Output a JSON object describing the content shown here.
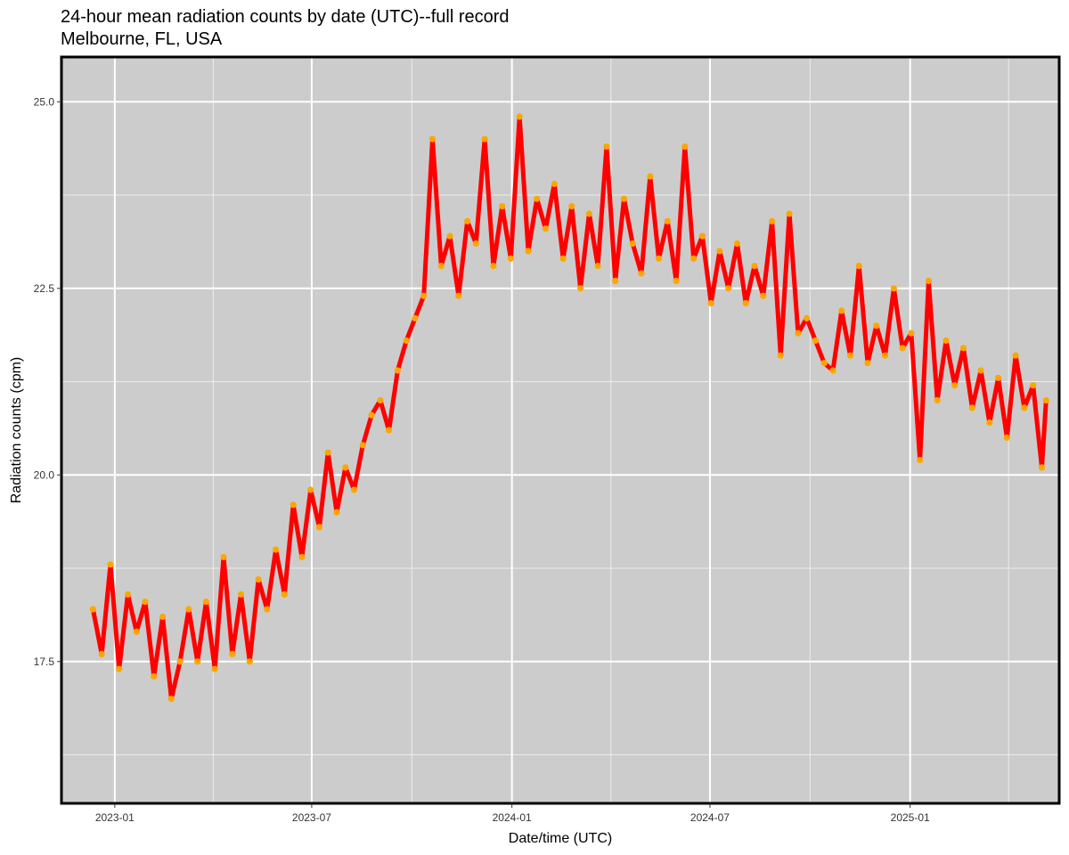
{
  "chart_data": {
    "type": "line",
    "title": "24-hour mean radiation counts by date (UTC)--full record",
    "subtitle": "Melbourne, FL, USA",
    "xlabel": "Date/time (UTC)",
    "ylabel": "Radiation counts (cpm)",
    "x_ticks": [
      "2023-01",
      "2023-07",
      "2024-01",
      "2024-07",
      "2025-01"
    ],
    "y_ticks": [
      "17.5",
      "20.0",
      "22.5",
      "25.0"
    ],
    "xlim": [
      "2022-11-13",
      "2025-05-18"
    ],
    "ylim": [
      15.6,
      25.6
    ],
    "grid": true,
    "line_color": "#ff0000",
    "point_color": "#ffa500",
    "panel_background": "#cccccc",
    "series": [
      {
        "x": [
          "2022-12-12",
          "2022-12-20",
          "2022-12-28",
          "2023-01-05",
          "2023-01-13",
          "2023-01-21",
          "2023-01-29",
          "2023-02-06",
          "2023-02-14",
          "2023-02-22",
          "2023-03-02",
          "2023-03-10",
          "2023-03-18",
          "2023-03-26",
          "2023-04-03",
          "2023-04-11",
          "2023-04-19",
          "2023-04-27",
          "2023-05-05",
          "2023-05-13",
          "2023-05-21",
          "2023-05-29",
          "2023-06-06",
          "2023-06-14",
          "2023-06-22",
          "2023-06-30",
          "2023-07-08",
          "2023-07-16",
          "2023-07-24",
          "2023-08-01",
          "2023-08-09",
          "2023-08-17",
          "2023-08-25",
          "2023-09-02",
          "2023-09-10",
          "2023-09-18",
          "2023-09-26",
          "2023-10-04",
          "2023-10-12",
          "2023-10-20",
          "2023-10-28",
          "2023-11-05",
          "2023-11-13",
          "2023-11-21",
          "2023-11-29",
          "2023-12-07",
          "2023-12-15",
          "2023-12-23",
          "2023-12-31",
          "2024-01-08",
          "2024-01-16",
          "2024-01-24",
          "2024-02-01",
          "2024-02-09",
          "2024-02-17",
          "2024-02-25",
          "2024-03-04",
          "2024-03-12",
          "2024-03-20",
          "2024-03-28",
          "2024-04-05",
          "2024-04-13",
          "2024-04-21",
          "2024-04-29",
          "2024-05-07",
          "2024-05-15",
          "2024-05-23",
          "2024-05-31",
          "2024-06-08",
          "2024-06-16",
          "2024-06-24",
          "2024-07-02",
          "2024-07-10",
          "2024-07-18",
          "2024-07-26",
          "2024-08-03",
          "2024-08-11",
          "2024-08-19",
          "2024-08-27",
          "2024-09-04",
          "2024-09-12",
          "2024-09-20",
          "2024-09-28",
          "2024-10-06",
          "2024-10-14",
          "2024-10-22",
          "2024-10-30",
          "2024-11-07",
          "2024-11-15",
          "2024-11-23",
          "2024-12-01",
          "2024-12-09",
          "2024-12-17",
          "2024-12-25",
          "2025-01-02",
          "2025-01-10",
          "2025-01-18",
          "2025-01-26",
          "2025-02-03",
          "2025-02-11",
          "2025-02-19",
          "2025-02-27",
          "2025-03-07",
          "2025-03-15",
          "2025-03-23",
          "2025-03-31",
          "2025-04-08",
          "2025-04-16",
          "2025-04-24",
          "2025-05-02",
          "2025-05-06"
        ],
        "values": [
          18.2,
          17.6,
          18.8,
          17.4,
          18.4,
          17.9,
          18.3,
          17.3,
          18.1,
          17.0,
          17.5,
          18.2,
          17.5,
          18.3,
          17.4,
          18.9,
          17.6,
          18.4,
          17.5,
          18.6,
          18.2,
          19.0,
          18.4,
          19.6,
          18.9,
          19.8,
          19.3,
          20.3,
          19.5,
          20.1,
          19.8,
          20.4,
          20.8,
          21.0,
          20.6,
          21.4,
          21.8,
          22.1,
          22.4,
          24.5,
          22.8,
          23.2,
          22.4,
          23.4,
          23.1,
          24.5,
          22.8,
          23.6,
          22.9,
          24.8,
          23.0,
          23.7,
          23.3,
          23.9,
          22.9,
          23.6,
          22.5,
          23.5,
          22.8,
          24.4,
          22.6,
          23.7,
          23.1,
          22.7,
          24.0,
          22.9,
          23.4,
          22.6,
          24.4,
          22.9,
          23.2,
          22.3,
          23.0,
          22.5,
          23.1,
          22.3,
          22.8,
          22.4,
          23.4,
          21.6,
          23.5,
          21.9,
          22.1,
          21.8,
          21.5,
          21.4,
          22.2,
          21.6,
          22.8,
          21.5,
          22.0,
          21.6,
          22.5,
          21.7,
          21.9,
          20.2,
          22.6,
          21.0,
          21.8,
          21.2,
          21.7,
          20.9,
          21.4,
          20.7,
          21.3,
          20.5,
          21.6,
          20.9,
          21.2,
          20.1,
          21.0
        ]
      }
    ]
  }
}
